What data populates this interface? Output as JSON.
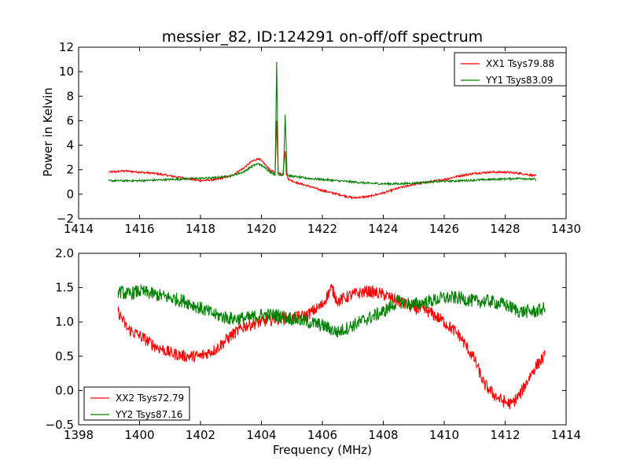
{
  "chart_data": [
    {
      "type": "line",
      "title": "messier_82, ID:124291 on-off/off spectrum",
      "xlabel": "",
      "ylabel": "Power in Kelvin",
      "xlim": [
        1414,
        1430
      ],
      "ylim": [
        -2,
        12
      ],
      "xticks": [
        1414,
        1416,
        1418,
        1420,
        1422,
        1424,
        1426,
        1428,
        1430
      ],
      "yticks": [
        -2,
        0,
        2,
        4,
        6,
        8,
        10,
        12
      ],
      "xtick_labels": [
        "1414",
        "1416",
        "1418",
        "1420",
        "1422",
        "1424",
        "1426",
        "1428",
        "1430"
      ],
      "ytick_labels": [
        "−2",
        "0",
        "2",
        "4",
        "6",
        "8",
        "10",
        "12"
      ],
      "legend_position": "top-right",
      "grid": false,
      "series": [
        {
          "name": "XX1 Tsys79.88",
          "color": "#ff0000",
          "x": [
            1415.0,
            1415.5,
            1416.0,
            1416.5,
            1417.0,
            1417.5,
            1418.0,
            1418.5,
            1419.0,
            1419.4,
            1419.7,
            1419.9,
            1420.1,
            1420.3,
            1420.45,
            1420.5,
            1420.55,
            1420.7,
            1420.78,
            1420.82,
            1420.9,
            1421.2,
            1421.5,
            1422.0,
            1422.5,
            1423.0,
            1423.5,
            1424.0,
            1424.5,
            1425.0,
            1425.5,
            1426.0,
            1426.5,
            1427.0,
            1427.5,
            1428.0,
            1428.5,
            1429.0
          ],
          "values": [
            1.8,
            1.9,
            1.8,
            1.7,
            1.5,
            1.3,
            1.1,
            1.2,
            1.5,
            2.1,
            2.7,
            2.9,
            2.5,
            1.9,
            1.8,
            6.0,
            1.8,
            1.6,
            3.5,
            1.6,
            1.2,
            0.9,
            0.7,
            0.3,
            0.0,
            -0.3,
            -0.2,
            0.1,
            0.5,
            0.8,
            1.0,
            1.2,
            1.5,
            1.7,
            1.8,
            1.8,
            1.7,
            1.5
          ]
        },
        {
          "name": "YY1 Tsys83.09",
          "color": "#008000",
          "x": [
            1415.0,
            1415.5,
            1416.0,
            1416.5,
            1417.0,
            1417.5,
            1418.0,
            1418.5,
            1419.0,
            1419.4,
            1419.7,
            1419.9,
            1420.1,
            1420.3,
            1420.45,
            1420.5,
            1420.55,
            1420.65,
            1420.72,
            1420.78,
            1420.84,
            1420.9,
            1421.2,
            1421.5,
            1422.0,
            1422.5,
            1423.0,
            1423.5,
            1424.0,
            1424.5,
            1425.0,
            1425.5,
            1426.0,
            1426.5,
            1427.0,
            1427.5,
            1428.0,
            1428.5,
            1429.0
          ],
          "values": [
            1.1,
            1.1,
            1.1,
            1.15,
            1.2,
            1.25,
            1.3,
            1.35,
            1.5,
            1.8,
            2.3,
            2.5,
            2.2,
            1.8,
            1.6,
            10.8,
            1.7,
            1.5,
            1.6,
            6.5,
            1.7,
            1.5,
            1.4,
            1.3,
            1.2,
            1.1,
            1.0,
            0.9,
            0.85,
            0.85,
            0.9,
            1.0,
            1.05,
            1.1,
            1.15,
            1.2,
            1.25,
            1.3,
            1.2
          ]
        }
      ]
    },
    {
      "type": "line",
      "title": "",
      "xlabel": "Frequency (MHz)",
      "ylabel": "",
      "xlim": [
        1398,
        1414
      ],
      "ylim": [
        -0.5,
        2.0
      ],
      "xticks": [
        1398,
        1400,
        1402,
        1404,
        1406,
        1408,
        1410,
        1412,
        1414
      ],
      "yticks": [
        -0.5,
        0.0,
        0.5,
        1.0,
        1.5,
        2.0
      ],
      "xtick_labels": [
        "1398",
        "1400",
        "1402",
        "1404",
        "1406",
        "1408",
        "1410",
        "1412",
        "1414"
      ],
      "ytick_labels": [
        "−0.5",
        "0.0",
        "0.5",
        "1.0",
        "1.5",
        "2.0"
      ],
      "legend_position": "bottom-left",
      "grid": false,
      "series": [
        {
          "name": "XX2 Tsys72.79",
          "color": "#ff0000",
          "x": [
            1399.3,
            1399.6,
            1400.0,
            1400.5,
            1401.0,
            1401.5,
            1402.0,
            1402.5,
            1403.0,
            1403.5,
            1404.0,
            1404.5,
            1405.0,
            1405.5,
            1406.0,
            1406.3,
            1406.5,
            1407.0,
            1407.5,
            1408.0,
            1408.5,
            1409.0,
            1409.5,
            1410.0,
            1410.5,
            1411.0,
            1411.3,
            1411.6,
            1411.9,
            1412.2,
            1412.5,
            1412.8,
            1413.0,
            1413.3
          ],
          "values": [
            1.15,
            0.9,
            0.8,
            0.65,
            0.55,
            0.5,
            0.5,
            0.6,
            0.8,
            0.95,
            1.0,
            1.05,
            1.05,
            1.1,
            1.25,
            1.5,
            1.3,
            1.4,
            1.45,
            1.4,
            1.3,
            1.2,
            1.15,
            1.0,
            0.8,
            0.45,
            0.1,
            -0.05,
            -0.15,
            -0.2,
            -0.05,
            0.2,
            0.35,
            0.5
          ]
        },
        {
          "name": "YY2 Tsys87.16",
          "color": "#008000",
          "x": [
            1399.3,
            1399.6,
            1400.0,
            1400.5,
            1401.0,
            1401.5,
            1402.0,
            1402.5,
            1403.0,
            1403.5,
            1404.0,
            1404.5,
            1405.0,
            1405.5,
            1406.0,
            1406.5,
            1407.0,
            1407.5,
            1408.0,
            1408.5,
            1409.0,
            1409.5,
            1410.0,
            1410.5,
            1411.0,
            1411.5,
            1412.0,
            1412.5,
            1413.0,
            1413.3
          ],
          "values": [
            1.45,
            1.4,
            1.45,
            1.4,
            1.35,
            1.3,
            1.2,
            1.1,
            1.05,
            1.05,
            1.1,
            1.1,
            1.05,
            1.0,
            0.95,
            0.85,
            0.95,
            1.05,
            1.15,
            1.3,
            1.25,
            1.3,
            1.35,
            1.35,
            1.3,
            1.3,
            1.25,
            1.15,
            1.15,
            1.2
          ]
        }
      ]
    }
  ]
}
